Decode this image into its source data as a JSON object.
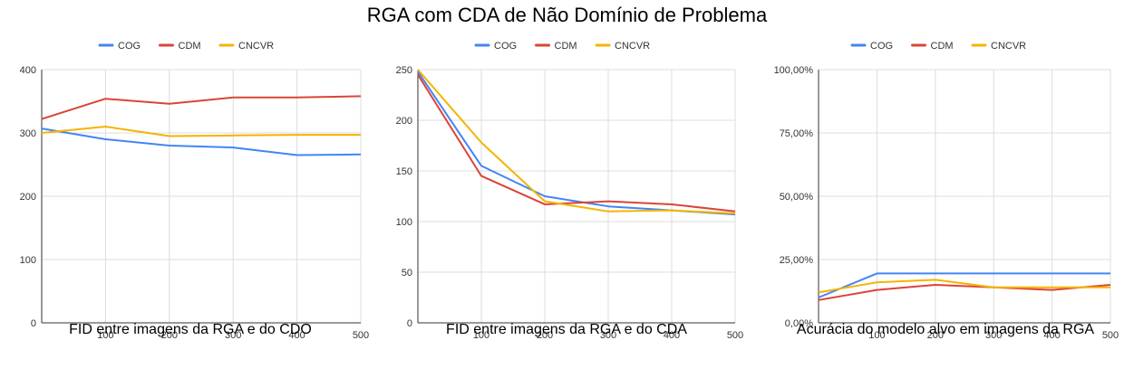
{
  "title": "RGA com CDA de Não Domínio de Problema",
  "chart_data": [
    {
      "type": "line",
      "caption": "FID entre imagens da RGA e do CDO",
      "x": [
        0,
        100,
        200,
        300,
        400,
        500
      ],
      "xticks": [
        "100",
        "200",
        "300",
        "400",
        "500"
      ],
      "xlim": [
        0,
        500
      ],
      "ylim": [
        0,
        400
      ],
      "yticks": [
        "0",
        "100",
        "200",
        "300",
        "400"
      ],
      "grid": true,
      "legend": "top-center",
      "series": [
        {
          "name": "COG",
          "color": "#4285f4",
          "values": [
            307,
            290,
            280,
            277,
            265,
            266
          ]
        },
        {
          "name": "CDM",
          "color": "#db4437",
          "values": [
            322,
            354,
            346,
            356,
            356,
            358
          ]
        },
        {
          "name": "CNCVR",
          "color": "#f4b400",
          "values": [
            300,
            310,
            295,
            296,
            297,
            297
          ]
        }
      ]
    },
    {
      "type": "line",
      "caption": "FID entre imagens da RGA e do CDA",
      "x": [
        0,
        100,
        200,
        300,
        400,
        500
      ],
      "xticks": [
        "100",
        "200",
        "300",
        "400",
        "500"
      ],
      "xlim": [
        0,
        500
      ],
      "ylim": [
        0,
        250
      ],
      "yticks": [
        "0",
        "50",
        "100",
        "150",
        "200",
        "250"
      ],
      "grid": true,
      "legend": "top-center",
      "series": [
        {
          "name": "COG",
          "color": "#4285f4",
          "values": [
            248,
            155,
            125,
            115,
            111,
            107
          ]
        },
        {
          "name": "CDM",
          "color": "#db4437",
          "values": [
            245,
            145,
            117,
            120,
            117,
            110
          ]
        },
        {
          "name": "CNCVR",
          "color": "#f4b400",
          "values": [
            250,
            178,
            120,
            110,
            111,
            108
          ]
        }
      ]
    },
    {
      "type": "line",
      "caption": "Acurácia do modelo alvo em imagens da RGA",
      "x": [
        0,
        100,
        200,
        300,
        400,
        500
      ],
      "xticks": [
        "100",
        "200",
        "300",
        "400",
        "500"
      ],
      "xlim": [
        0,
        500
      ],
      "ylim": [
        0,
        100
      ],
      "yticks": [
        "0,00%",
        "25,00%",
        "50,00%",
        "75,00%",
        "100,00%"
      ],
      "grid": true,
      "legend": "top-center",
      "series": [
        {
          "name": "COG",
          "color": "#4285f4",
          "values": [
            10,
            19.5,
            19.5,
            19.5,
            19.5,
            19.5
          ]
        },
        {
          "name": "CDM",
          "color": "#db4437",
          "values": [
            9,
            13,
            15,
            14,
            13,
            15
          ]
        },
        {
          "name": "CNCVR",
          "color": "#f4b400",
          "values": [
            12,
            16,
            17,
            14,
            14,
            14
          ]
        }
      ]
    }
  ]
}
